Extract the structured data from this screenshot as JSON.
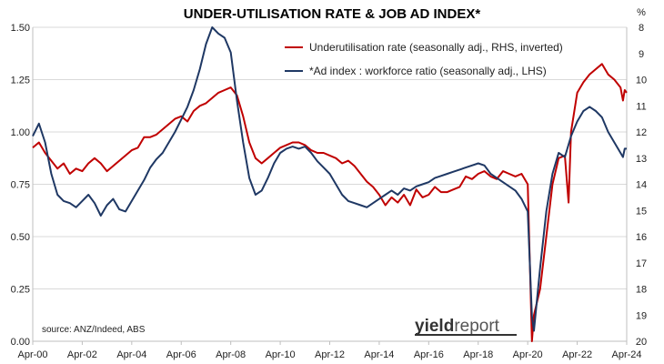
{
  "chart_data": {
    "type": "line",
    "title": "UNDER-UTILISATION RATE & JOB AD INDEX*",
    "source": "source: ANZ/Indeed, ABS",
    "logo": {
      "part1": "yield",
      "part2": "report"
    },
    "right_axis_unit": "%",
    "x_tick_labels": [
      "Apr-00",
      "Apr-02",
      "Apr-04",
      "Apr-06",
      "Apr-08",
      "Apr-10",
      "Apr-12",
      "Apr-14",
      "Apr-16",
      "Apr-18",
      "Apr-20",
      "Apr-22",
      "Apr-24"
    ],
    "x_range": [
      2000.25,
      2024.25
    ],
    "left_axis": {
      "ticks": [
        "0.00",
        "0.25",
        "0.50",
        "0.75",
        "1.00",
        "1.25",
        "1.50"
      ],
      "ylim": [
        0,
        1.5
      ]
    },
    "right_axis": {
      "ticks": [
        "8",
        "9",
        "10",
        "11",
        "12",
        "13",
        "14",
        "15",
        "16",
        "17",
        "18",
        "19",
        "20"
      ],
      "ylim": [
        8,
        20
      ],
      "inverted": true
    },
    "grid": "horizontal",
    "legend_position": "top-right",
    "colors": {
      "underutilisation": "#c00000",
      "ad_index": "#1f3864"
    },
    "series": [
      {
        "name": "Underutilisation rate (seasonally adj., RHS, inverted)",
        "axis": "right",
        "color": "#c00000",
        "points": [
          [
            2000.25,
            12.6
          ],
          [
            2000.5,
            12.4
          ],
          [
            2000.75,
            12.8
          ],
          [
            2001.0,
            13.1
          ],
          [
            2001.25,
            13.4
          ],
          [
            2001.5,
            13.2
          ],
          [
            2001.75,
            13.6
          ],
          [
            2002.0,
            13.4
          ],
          [
            2002.25,
            13.5
          ],
          [
            2002.5,
            13.2
          ],
          [
            2002.75,
            13.0
          ],
          [
            2003.0,
            13.2
          ],
          [
            2003.25,
            13.5
          ],
          [
            2003.5,
            13.3
          ],
          [
            2003.75,
            13.1
          ],
          [
            2004.0,
            12.9
          ],
          [
            2004.25,
            12.7
          ],
          [
            2004.5,
            12.6
          ],
          [
            2004.75,
            12.2
          ],
          [
            2005.0,
            12.2
          ],
          [
            2005.25,
            12.1
          ],
          [
            2005.5,
            11.9
          ],
          [
            2005.75,
            11.7
          ],
          [
            2006.0,
            11.5
          ],
          [
            2006.25,
            11.4
          ],
          [
            2006.5,
            11.6
          ],
          [
            2006.75,
            11.2
          ],
          [
            2007.0,
            11.0
          ],
          [
            2007.25,
            10.9
          ],
          [
            2007.5,
            10.7
          ],
          [
            2007.75,
            10.5
          ],
          [
            2008.0,
            10.4
          ],
          [
            2008.25,
            10.3
          ],
          [
            2008.5,
            10.6
          ],
          [
            2008.75,
            11.4
          ],
          [
            2009.0,
            12.4
          ],
          [
            2009.25,
            13.0
          ],
          [
            2009.5,
            13.2
          ],
          [
            2009.75,
            13.0
          ],
          [
            2010.0,
            12.8
          ],
          [
            2010.25,
            12.6
          ],
          [
            2010.5,
            12.5
          ],
          [
            2010.75,
            12.4
          ],
          [
            2011.0,
            12.4
          ],
          [
            2011.25,
            12.5
          ],
          [
            2011.5,
            12.7
          ],
          [
            2011.75,
            12.8
          ],
          [
            2012.0,
            12.8
          ],
          [
            2012.25,
            12.9
          ],
          [
            2012.5,
            13.0
          ],
          [
            2012.75,
            13.2
          ],
          [
            2013.0,
            13.1
          ],
          [
            2013.25,
            13.3
          ],
          [
            2013.5,
            13.6
          ],
          [
            2013.75,
            13.9
          ],
          [
            2014.0,
            14.1
          ],
          [
            2014.25,
            14.4
          ],
          [
            2014.5,
            14.8
          ],
          [
            2014.75,
            14.5
          ],
          [
            2015.0,
            14.7
          ],
          [
            2015.25,
            14.4
          ],
          [
            2015.5,
            14.8
          ],
          [
            2015.75,
            14.2
          ],
          [
            2016.0,
            14.5
          ],
          [
            2016.25,
            14.4
          ],
          [
            2016.5,
            14.1
          ],
          [
            2016.75,
            14.3
          ],
          [
            2017.0,
            14.3
          ],
          [
            2017.25,
            14.2
          ],
          [
            2017.5,
            14.1
          ],
          [
            2017.75,
            13.7
          ],
          [
            2018.0,
            13.8
          ],
          [
            2018.25,
            13.6
          ],
          [
            2018.5,
            13.5
          ],
          [
            2018.75,
            13.7
          ],
          [
            2019.0,
            13.8
          ],
          [
            2019.25,
            13.5
          ],
          [
            2019.5,
            13.6
          ],
          [
            2019.75,
            13.7
          ],
          [
            2020.0,
            13.6
          ],
          [
            2020.25,
            14.0
          ],
          [
            2020.42,
            20.0
          ],
          [
            2020.5,
            19.0
          ],
          [
            2020.75,
            18.0
          ],
          [
            2021.0,
            16.0
          ],
          [
            2021.25,
            14.0
          ],
          [
            2021.5,
            13.0
          ],
          [
            2021.75,
            12.9
          ],
          [
            2021.9,
            14.7
          ],
          [
            2022.0,
            12.0
          ],
          [
            2022.25,
            10.5
          ],
          [
            2022.5,
            10.1
          ],
          [
            2022.75,
            9.8
          ],
          [
            2023.0,
            9.6
          ],
          [
            2023.25,
            9.4
          ],
          [
            2023.5,
            9.8
          ],
          [
            2023.75,
            10.0
          ],
          [
            2024.0,
            10.3
          ],
          [
            2024.1,
            10.8
          ],
          [
            2024.17,
            10.4
          ],
          [
            2024.25,
            10.5
          ]
        ]
      },
      {
        "name": "*Ad index : workforce ratio (seasonally adj., LHS)",
        "axis": "left",
        "color": "#1f3864",
        "points": [
          [
            2000.25,
            0.98
          ],
          [
            2000.5,
            1.04
          ],
          [
            2000.75,
            0.95
          ],
          [
            2001.0,
            0.8
          ],
          [
            2001.25,
            0.7
          ],
          [
            2001.5,
            0.67
          ],
          [
            2001.75,
            0.66
          ],
          [
            2002.0,
            0.64
          ],
          [
            2002.25,
            0.67
          ],
          [
            2002.5,
            0.7
          ],
          [
            2002.75,
            0.66
          ],
          [
            2003.0,
            0.6
          ],
          [
            2003.25,
            0.65
          ],
          [
            2003.5,
            0.68
          ],
          [
            2003.75,
            0.63
          ],
          [
            2004.0,
            0.62
          ],
          [
            2004.25,
            0.67
          ],
          [
            2004.5,
            0.72
          ],
          [
            2004.75,
            0.77
          ],
          [
            2005.0,
            0.83
          ],
          [
            2005.25,
            0.87
          ],
          [
            2005.5,
            0.9
          ],
          [
            2005.75,
            0.95
          ],
          [
            2006.0,
            1.0
          ],
          [
            2006.25,
            1.06
          ],
          [
            2006.5,
            1.12
          ],
          [
            2006.75,
            1.2
          ],
          [
            2007.0,
            1.3
          ],
          [
            2007.25,
            1.42
          ],
          [
            2007.5,
            1.5
          ],
          [
            2007.75,
            1.47
          ],
          [
            2008.0,
            1.45
          ],
          [
            2008.25,
            1.38
          ],
          [
            2008.5,
            1.15
          ],
          [
            2008.75,
            0.95
          ],
          [
            2009.0,
            0.78
          ],
          [
            2009.25,
            0.7
          ],
          [
            2009.5,
            0.72
          ],
          [
            2009.75,
            0.78
          ],
          [
            2010.0,
            0.85
          ],
          [
            2010.25,
            0.9
          ],
          [
            2010.5,
            0.92
          ],
          [
            2010.75,
            0.93
          ],
          [
            2011.0,
            0.92
          ],
          [
            2011.25,
            0.93
          ],
          [
            2011.5,
            0.9
          ],
          [
            2011.75,
            0.86
          ],
          [
            2012.0,
            0.83
          ],
          [
            2012.25,
            0.8
          ],
          [
            2012.5,
            0.75
          ],
          [
            2012.75,
            0.7
          ],
          [
            2013.0,
            0.67
          ],
          [
            2013.25,
            0.66
          ],
          [
            2013.5,
            0.65
          ],
          [
            2013.75,
            0.64
          ],
          [
            2014.0,
            0.66
          ],
          [
            2014.25,
            0.68
          ],
          [
            2014.5,
            0.7
          ],
          [
            2014.75,
            0.72
          ],
          [
            2015.0,
            0.7
          ],
          [
            2015.25,
            0.73
          ],
          [
            2015.5,
            0.72
          ],
          [
            2015.75,
            0.74
          ],
          [
            2016.0,
            0.75
          ],
          [
            2016.25,
            0.76
          ],
          [
            2016.5,
            0.78
          ],
          [
            2016.75,
            0.79
          ],
          [
            2017.0,
            0.8
          ],
          [
            2017.25,
            0.81
          ],
          [
            2017.5,
            0.82
          ],
          [
            2017.75,
            0.83
          ],
          [
            2018.0,
            0.84
          ],
          [
            2018.25,
            0.85
          ],
          [
            2018.5,
            0.84
          ],
          [
            2018.75,
            0.8
          ],
          [
            2019.0,
            0.78
          ],
          [
            2019.25,
            0.76
          ],
          [
            2019.5,
            0.74
          ],
          [
            2019.75,
            0.72
          ],
          [
            2020.0,
            0.68
          ],
          [
            2020.25,
            0.62
          ],
          [
            2020.42,
            0.12
          ],
          [
            2020.5,
            0.05
          ],
          [
            2020.75,
            0.35
          ],
          [
            2021.0,
            0.62
          ],
          [
            2021.25,
            0.8
          ],
          [
            2021.5,
            0.9
          ],
          [
            2021.75,
            0.88
          ],
          [
            2022.0,
            0.98
          ],
          [
            2022.25,
            1.05
          ],
          [
            2022.5,
            1.1
          ],
          [
            2022.75,
            1.12
          ],
          [
            2023.0,
            1.1
          ],
          [
            2023.25,
            1.07
          ],
          [
            2023.5,
            1.0
          ],
          [
            2023.75,
            0.95
          ],
          [
            2024.0,
            0.9
          ],
          [
            2024.1,
            0.88
          ],
          [
            2024.17,
            0.92
          ],
          [
            2024.25,
            0.92
          ]
        ]
      }
    ]
  }
}
